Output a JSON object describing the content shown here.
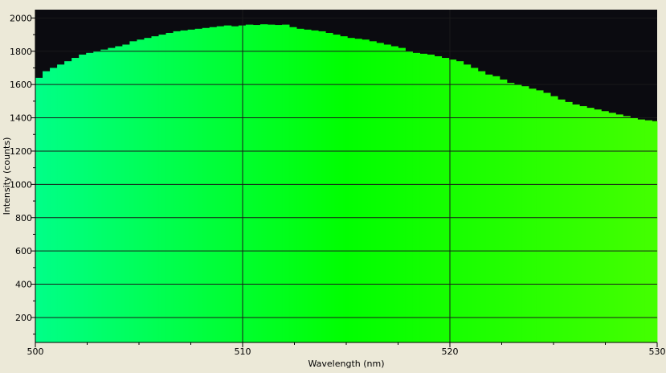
{
  "colors": {
    "window_background": "#ece9d8",
    "plot_background": "#0b0b10",
    "grid": "#1a1a1a",
    "axis": "#000000",
    "spectrum_start": "#00ff88",
    "spectrum_mid": "#00ff00",
    "spectrum_end": "#44ff00"
  },
  "chart_data": {
    "type": "bar",
    "xlabel": "Wavelength (nm)",
    "ylabel": "Intensity (counts)",
    "xlim": [
      500,
      530
    ],
    "ylim": [
      50,
      2050
    ],
    "xticks": [
      500,
      510,
      520,
      530
    ],
    "xtick_labels": [
      "500",
      "510",
      "520",
      "530"
    ],
    "yticks": [
      200,
      400,
      600,
      800,
      1000,
      1200,
      1400,
      1600,
      1800,
      2000
    ],
    "ytick_labels": [
      "200",
      "400",
      "600",
      "800",
      "1000",
      "1200",
      "1400",
      "1600",
      "1800",
      "2000"
    ],
    "grid": true,
    "x": [
      500.0,
      500.35,
      500.7,
      501.05,
      501.4,
      501.75,
      502.1,
      502.45,
      502.8,
      503.15,
      503.5,
      503.85,
      504.2,
      504.55,
      504.9,
      505.25,
      505.6,
      505.95,
      506.3,
      506.65,
      507.0,
      507.35,
      507.7,
      508.05,
      508.4,
      508.75,
      509.1,
      509.45,
      509.8,
      510.15,
      510.5,
      510.85,
      511.2,
      511.55,
      511.9,
      512.25,
      512.6,
      512.95,
      513.3,
      513.65,
      514.0,
      514.35,
      514.7,
      515.05,
      515.4,
      515.75,
      516.1,
      516.45,
      516.8,
      517.15,
      517.5,
      517.85,
      518.2,
      518.55,
      518.9,
      519.25,
      519.6,
      519.95,
      520.3,
      520.65,
      521.0,
      521.35,
      521.7,
      522.05,
      522.4,
      522.75,
      523.1,
      523.45,
      523.8,
      524.15,
      524.5,
      524.85,
      525.2,
      525.55,
      525.9,
      526.25,
      526.6,
      526.95,
      527.3,
      527.65,
      528.0,
      528.35,
      528.7,
      529.05,
      529.4,
      529.75
    ],
    "values": [
      1640,
      1680,
      1700,
      1720,
      1740,
      1760,
      1780,
      1790,
      1800,
      1810,
      1820,
      1830,
      1840,
      1860,
      1870,
      1880,
      1890,
      1900,
      1910,
      1920,
      1925,
      1930,
      1935,
      1940,
      1945,
      1950,
      1955,
      1950,
      1955,
      1960,
      1958,
      1962,
      1960,
      1958,
      1960,
      1945,
      1935,
      1930,
      1925,
      1920,
      1910,
      1900,
      1890,
      1880,
      1875,
      1870,
      1860,
      1850,
      1840,
      1830,
      1820,
      1800,
      1790,
      1785,
      1780,
      1770,
      1760,
      1750,
      1740,
      1720,
      1700,
      1680,
      1660,
      1650,
      1630,
      1610,
      1600,
      1590,
      1575,
      1565,
      1550,
      1530,
      1510,
      1495,
      1480,
      1470,
      1460,
      1450,
      1440,
      1430,
      1420,
      1410,
      1400,
      1390,
      1385,
      1380
    ]
  }
}
